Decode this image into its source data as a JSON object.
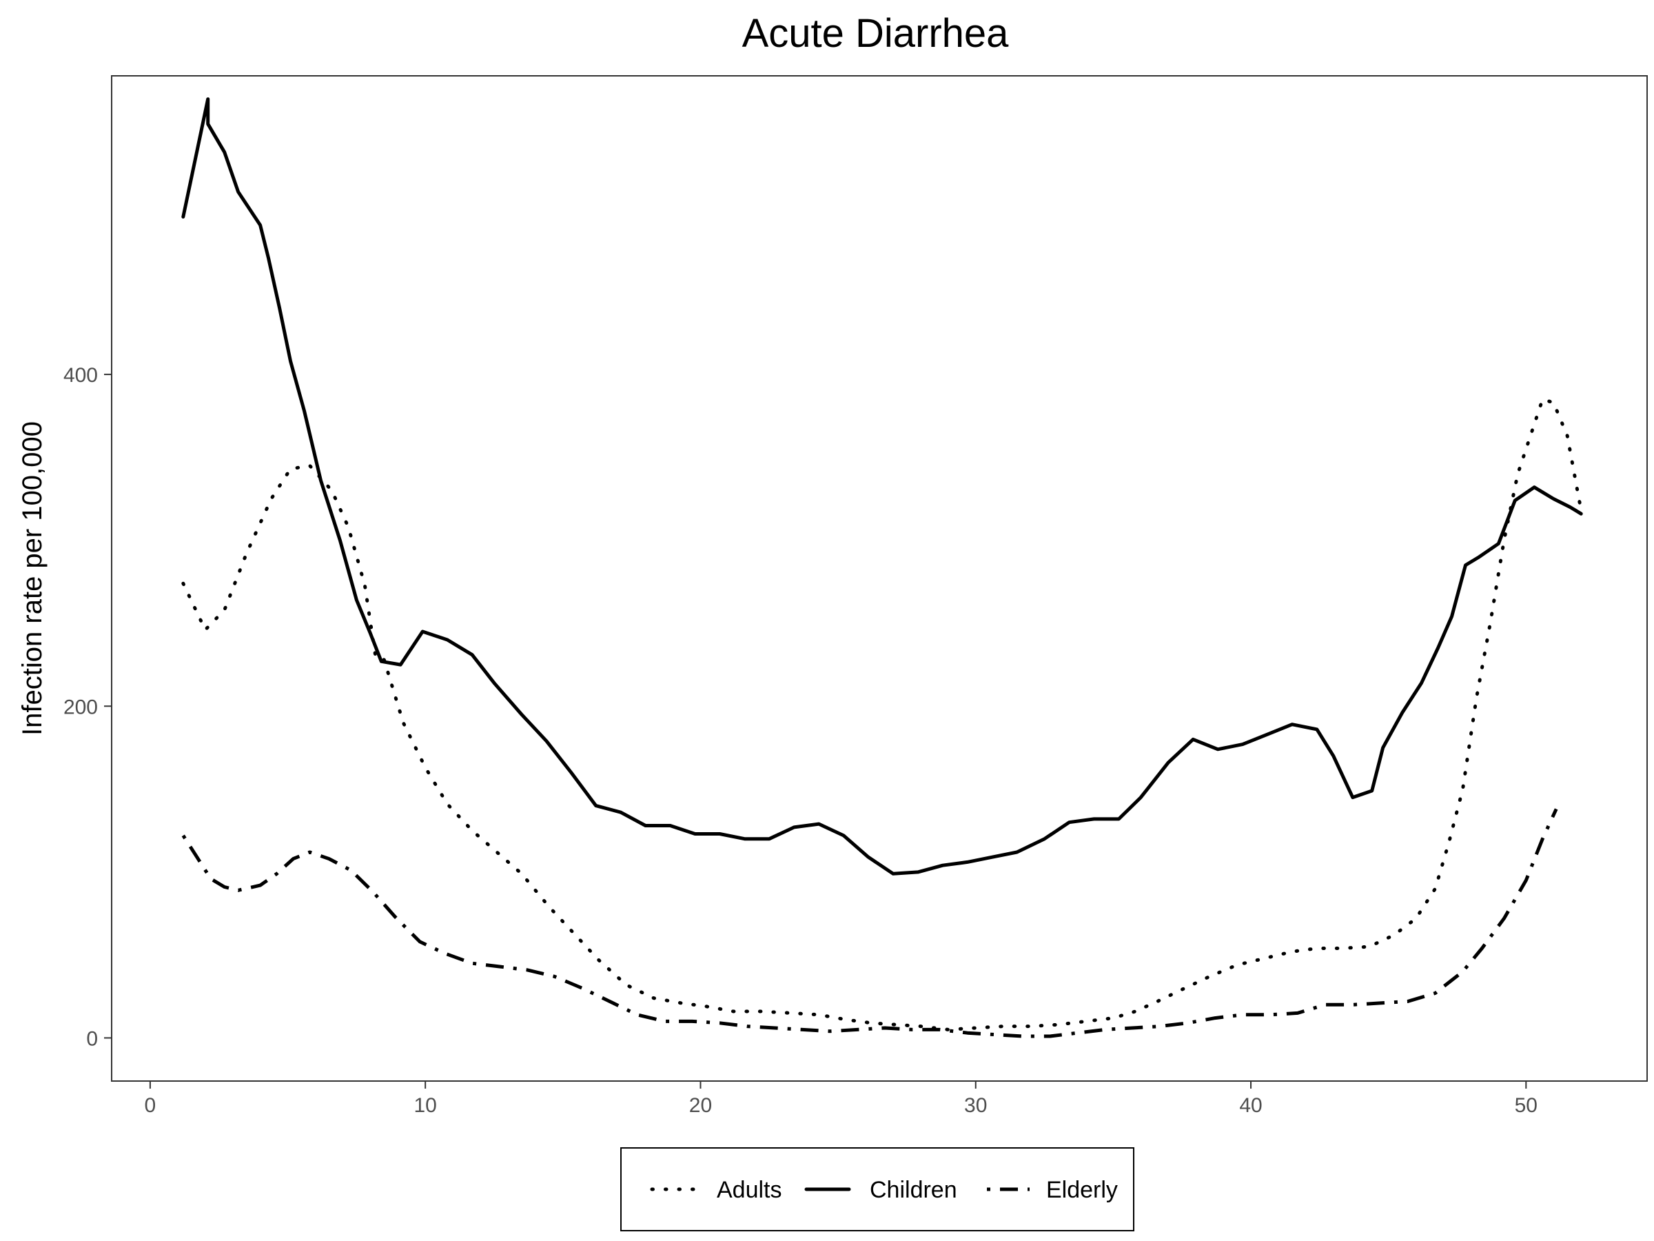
{
  "chart_data": {
    "type": "line",
    "title": "Acute Diarrhea",
    "xlabel": "",
    "ylabel": "Infection rate per 100,000",
    "xlim": [
      -1.4,
      54.4
    ],
    "ylim": [
      -26,
      580
    ],
    "xticks": [
      0,
      10,
      20,
      30,
      40,
      50
    ],
    "yticks": [
      0,
      200,
      400
    ],
    "grid": false,
    "legend_position": "bottom",
    "series": [
      {
        "name": "Adults",
        "line_style": "dotted",
        "color": "#000000",
        "x": [
          1.2,
          2,
          2.7,
          3.5,
          4.4,
          5.1,
          5.8,
          6.6,
          7.2,
          7.8,
          8.2,
          8.5,
          9.2,
          10,
          10.8,
          11.7,
          12.6,
          13.5,
          14.5,
          15.4,
          16.3,
          17.3,
          18.3,
          19.3,
          20.2,
          21.2,
          22.2,
          23.3,
          24.3,
          25.3,
          26.2,
          27.1,
          28,
          29,
          30,
          31,
          32,
          33,
          34,
          35,
          35.8,
          36.6,
          37.6,
          38.5,
          39.5,
          40.5,
          41.5,
          42.4,
          43.3,
          44.3,
          45.2,
          46,
          46.7,
          47.2,
          47.7,
          48.2,
          48.7,
          49.2,
          49.7,
          50.2,
          50.6,
          51,
          51.5,
          52
        ],
        "y": [
          274,
          246,
          258,
          292,
          325,
          343,
          345,
          330,
          308,
          273,
          229,
          228,
          190,
          163,
          141,
          125,
          112,
          99,
          79,
          63,
          47,
          32,
          24,
          21,
          19,
          16,
          16,
          15,
          14,
          11,
          9,
          8,
          7,
          5,
          6,
          7,
          7,
          8,
          10,
          12,
          16,
          22,
          30,
          37,
          44,
          48,
          52,
          54,
          54,
          55,
          62,
          72,
          90,
          118,
          150,
          205,
          250,
          300,
          340,
          365,
          385,
          383,
          363,
          318
        ]
      },
      {
        "name": "Children",
        "line_style": "solid",
        "color": "#000000",
        "x": [
          1.2,
          2.1,
          2.1,
          2.7,
          3.2,
          4,
          4.3,
          4.7,
          5.1,
          5.6,
          6.2,
          6.9,
          7.5,
          8,
          8.4,
          9.1,
          9.9,
          10.8,
          11.7,
          12.5,
          13.5,
          14.4,
          15.3,
          16.2,
          17.1,
          18,
          18.9,
          19.8,
          20.7,
          21.6,
          22.5,
          23.4,
          24.3,
          25.2,
          26.1,
          27,
          27.9,
          28.8,
          29.7,
          30.6,
          31.5,
          32.5,
          33.4,
          34.3,
          35.2,
          36,
          37,
          37.9,
          38.8,
          39.7,
          40.6,
          41.5,
          42.4,
          43,
          43.7,
          44.4,
          44.8,
          45.5,
          46.2,
          46.8,
          47.3,
          47.8,
          48.3,
          49,
          49.6,
          50.3,
          51,
          51.6,
          52
        ],
        "y": [
          495,
          566,
          551,
          534,
          510,
          490,
          470,
          440,
          408,
          378,
          336,
          300,
          264,
          244,
          227,
          225,
          245,
          240,
          231,
          214,
          195,
          179,
          160,
          140,
          136,
          128,
          128,
          123,
          123,
          120,
          120,
          127,
          129,
          122,
          109,
          99,
          100,
          104,
          106,
          109,
          112,
          120,
          130,
          132,
          132,
          145,
          166,
          180,
          174,
          177,
          183,
          189,
          186,
          170,
          145,
          149,
          175,
          196,
          214,
          235,
          254,
          285,
          290,
          298,
          324,
          332,
          325,
          320,
          316
        ]
      },
      {
        "name": "Elderly",
        "line_style": "dashed",
        "color": "#000000",
        "x": [
          1.2,
          1.7,
          2.2,
          2.7,
          3.2,
          4,
          4.6,
          5.2,
          5.8,
          6.5,
          7.3,
          8.1,
          8.9,
          9.8,
          10.7,
          11.7,
          12.7,
          13.7,
          14.7,
          15.7,
          16.7,
          17.7,
          18.7,
          19.7,
          20.7,
          21.7,
          22.7,
          23.7,
          24.7,
          25.7,
          26.7,
          27.7,
          28.7,
          29.7,
          30.7,
          31.7,
          32.7,
          33.7,
          34.7,
          35.7,
          36.7,
          37.7,
          38.7,
          39.7,
          40.7,
          41.7,
          42.7,
          43.7,
          44.7,
          45.7,
          46.7,
          47.7,
          48.4,
          49.2,
          50,
          50.6,
          51.1
        ],
        "y": [
          122,
          109,
          96,
          91,
          89,
          92,
          99,
          108,
          112,
          108,
          101,
          88,
          73,
          58,
          51,
          45,
          43,
          41,
          37,
          30,
          22,
          14,
          10,
          10,
          9,
          7,
          6,
          5,
          4,
          5,
          6,
          5,
          5,
          3,
          2,
          1,
          1,
          3,
          5,
          6,
          7,
          9,
          12,
          14,
          14,
          15,
          20,
          20,
          21,
          22,
          27,
          40,
          54,
          72,
          95,
          120,
          138
        ]
      }
    ]
  }
}
